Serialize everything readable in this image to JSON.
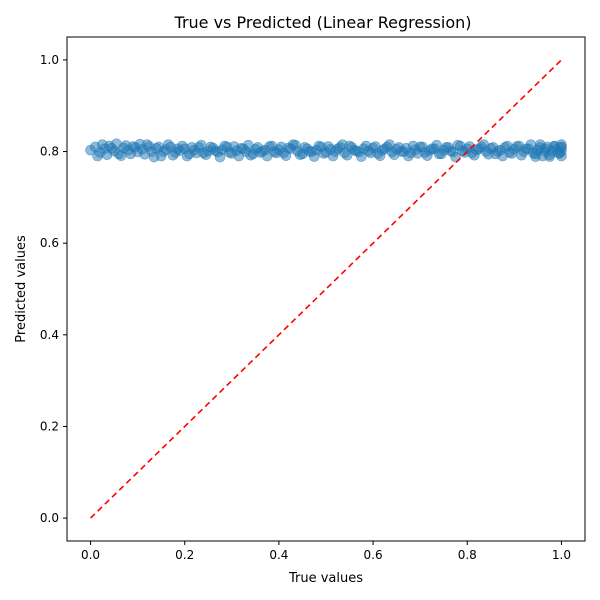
{
  "chart_data": {
    "type": "scatter",
    "title": "True vs Predicted (Linear Regression)",
    "xlabel": "True values",
    "ylabel": "Predicted values",
    "xlim": [
      -0.05,
      1.05
    ],
    "ylim": [
      -0.05,
      1.05
    ],
    "xticks": [
      "0.0",
      "0.2",
      "0.4",
      "0.6",
      "0.8",
      "1.0"
    ],
    "yticks": [
      "0.0",
      "0.2",
      "0.4",
      "0.6",
      "0.8",
      "1.0"
    ],
    "grid": false,
    "legend": "none",
    "series": [
      {
        "kind": "scatter",
        "color": "#1f77b4",
        "alpha": 0.5,
        "points": [
          [
            0.0,
            0.803
          ],
          [
            0.01,
            0.81
          ],
          [
            0.02,
            0.798
          ],
          [
            0.03,
            0.806
          ],
          [
            0.04,
            0.812
          ],
          [
            0.05,
            0.801
          ],
          [
            0.06,
            0.795
          ],
          [
            0.07,
            0.808
          ],
          [
            0.08,
            0.803
          ],
          [
            0.09,
            0.811
          ],
          [
            0.1,
            0.799
          ],
          [
            0.11,
            0.805
          ],
          [
            0.12,
            0.815
          ],
          [
            0.13,
            0.8
          ],
          [
            0.14,
            0.807
          ],
          [
            0.15,
            0.79
          ],
          [
            0.16,
            0.804
          ],
          [
            0.17,
            0.81
          ],
          [
            0.18,
            0.798
          ],
          [
            0.19,
            0.802
          ],
          [
            0.2,
            0.806
          ],
          [
            0.21,
            0.795
          ],
          [
            0.22,
            0.803
          ],
          [
            0.23,
            0.809
          ],
          [
            0.24,
            0.797
          ],
          [
            0.25,
            0.801
          ],
          [
            0.26,
            0.808
          ],
          [
            0.27,
            0.799
          ],
          [
            0.28,
            0.804
          ],
          [
            0.29,
            0.81
          ],
          [
            0.3,
            0.796
          ],
          [
            0.31,
            0.802
          ],
          [
            0.32,
            0.807
          ],
          [
            0.33,
            0.8
          ],
          [
            0.34,
            0.792
          ],
          [
            0.35,
            0.805
          ],
          [
            0.36,
            0.798
          ],
          [
            0.37,
            0.803
          ],
          [
            0.38,
            0.811
          ],
          [
            0.39,
            0.799
          ],
          [
            0.4,
            0.804
          ],
          [
            0.41,
            0.797
          ],
          [
            0.42,
            0.808
          ],
          [
            0.43,
            0.815
          ],
          [
            0.44,
            0.801
          ],
          [
            0.45,
            0.795
          ],
          [
            0.46,
            0.806
          ],
          [
            0.47,
            0.8
          ],
          [
            0.48,
            0.803
          ],
          [
            0.49,
            0.81
          ],
          [
            0.5,
            0.798
          ],
          [
            0.51,
            0.805
          ],
          [
            0.52,
            0.8
          ],
          [
            0.53,
            0.809
          ],
          [
            0.54,
            0.797
          ],
          [
            0.55,
            0.812
          ],
          [
            0.56,
            0.803
          ],
          [
            0.57,
            0.799
          ],
          [
            0.58,
            0.806
          ],
          [
            0.59,
            0.801
          ],
          [
            0.6,
            0.808
          ],
          [
            0.61,
            0.796
          ],
          [
            0.62,
            0.803
          ],
          [
            0.63,
            0.81
          ],
          [
            0.64,
            0.799
          ],
          [
            0.65,
            0.805
          ],
          [
            0.66,
            0.8
          ],
          [
            0.67,
            0.807
          ],
          [
            0.68,
            0.797
          ],
          [
            0.69,
            0.804
          ],
          [
            0.7,
            0.81
          ],
          [
            0.71,
            0.798
          ],
          [
            0.72,
            0.802
          ],
          [
            0.73,
            0.806
          ],
          [
            0.74,
            0.795
          ],
          [
            0.75,
            0.803
          ],
          [
            0.76,
            0.809
          ],
          [
            0.77,
            0.799
          ],
          [
            0.78,
            0.814
          ],
          [
            0.79,
            0.801
          ],
          [
            0.8,
            0.806
          ],
          [
            0.81,
            0.797
          ],
          [
            0.82,
            0.803
          ],
          [
            0.83,
            0.81
          ],
          [
            0.84,
            0.8
          ],
          [
            0.85,
            0.807
          ],
          [
            0.86,
            0.795
          ],
          [
            0.87,
            0.803
          ],
          [
            0.88,
            0.809
          ],
          [
            0.89,
            0.798
          ],
          [
            0.9,
            0.805
          ],
          [
            0.91,
            0.812
          ],
          [
            0.92,
            0.8
          ],
          [
            0.93,
            0.806
          ],
          [
            0.94,
            0.797
          ],
          [
            0.95,
            0.803
          ],
          [
            0.96,
            0.79
          ],
          [
            0.97,
            0.81
          ],
          [
            0.98,
            0.801
          ],
          [
            0.99,
            0.805
          ],
          [
            1.0,
            0.815
          ],
          [
            1.0,
            0.79
          ],
          [
            1.0,
            0.8
          ],
          [
            1.0,
            0.808
          ],
          [
            0.995,
            0.796
          ],
          [
            0.985,
            0.811
          ],
          [
            0.975,
            0.793
          ],
          [
            0.965,
            0.806
          ],
          [
            0.955,
            0.815
          ],
          [
            0.945,
            0.789
          ],
          [
            0.015,
            0.79
          ],
          [
            0.025,
            0.815
          ],
          [
            0.035,
            0.793
          ],
          [
            0.045,
            0.807
          ],
          [
            0.055,
            0.817
          ],
          [
            0.065,
            0.791
          ],
          [
            0.075,
            0.813
          ],
          [
            0.085,
            0.795
          ],
          [
            0.095,
            0.809
          ],
          [
            0.105,
            0.816
          ],
          [
            0.115,
            0.794
          ],
          [
            0.125,
            0.811
          ],
          [
            0.135,
            0.788
          ],
          [
            0.145,
            0.81
          ],
          [
            0.155,
            0.8
          ],
          [
            0.165,
            0.815
          ],
          [
            0.175,
            0.792
          ],
          [
            0.185,
            0.806
          ],
          [
            0.195,
            0.812
          ],
          [
            0.205,
            0.79
          ],
          [
            0.215,
            0.809
          ],
          [
            0.225,
            0.797
          ],
          [
            0.235,
            0.814
          ],
          [
            0.245,
            0.793
          ],
          [
            0.255,
            0.81
          ],
          [
            0.265,
            0.802
          ],
          [
            0.275,
            0.788
          ],
          [
            0.285,
            0.812
          ],
          [
            0.295,
            0.798
          ],
          [
            0.305,
            0.811
          ],
          [
            0.315,
            0.79
          ],
          [
            0.325,
            0.806
          ],
          [
            0.335,
            0.814
          ],
          [
            0.345,
            0.795
          ],
          [
            0.355,
            0.809
          ],
          [
            0.365,
            0.8
          ],
          [
            0.375,
            0.79
          ],
          [
            0.385,
            0.812
          ],
          [
            0.395,
            0.797
          ],
          [
            0.405,
            0.81
          ],
          [
            0.415,
            0.791
          ],
          [
            0.425,
            0.806
          ],
          [
            0.435,
            0.814
          ],
          [
            0.445,
            0.793
          ],
          [
            0.455,
            0.809
          ],
          [
            0.465,
            0.8
          ],
          [
            0.475,
            0.789
          ],
          [
            0.485,
            0.812
          ],
          [
            0.495,
            0.796
          ],
          [
            0.505,
            0.811
          ],
          [
            0.515,
            0.79
          ],
          [
            0.525,
            0.806
          ],
          [
            0.535,
            0.815
          ],
          [
            0.545,
            0.792
          ],
          [
            0.555,
            0.809
          ],
          [
            0.565,
            0.801
          ],
          [
            0.575,
            0.789
          ],
          [
            0.585,
            0.812
          ],
          [
            0.595,
            0.797
          ],
          [
            0.605,
            0.811
          ],
          [
            0.615,
            0.791
          ],
          [
            0.625,
            0.806
          ],
          [
            0.635,
            0.815
          ],
          [
            0.645,
            0.793
          ],
          [
            0.655,
            0.809
          ],
          [
            0.665,
            0.8
          ],
          [
            0.675,
            0.79
          ],
          [
            0.685,
            0.812
          ],
          [
            0.695,
            0.796
          ],
          [
            0.705,
            0.81
          ],
          [
            0.715,
            0.791
          ],
          [
            0.725,
            0.806
          ],
          [
            0.735,
            0.814
          ],
          [
            0.745,
            0.795
          ],
          [
            0.755,
            0.809
          ],
          [
            0.765,
            0.801
          ],
          [
            0.775,
            0.788
          ],
          [
            0.785,
            0.812
          ],
          [
            0.795,
            0.798
          ],
          [
            0.805,
            0.811
          ],
          [
            0.815,
            0.792
          ],
          [
            0.825,
            0.806
          ],
          [
            0.835,
            0.815
          ],
          [
            0.845,
            0.794
          ],
          [
            0.855,
            0.809
          ],
          [
            0.865,
            0.8
          ],
          [
            0.875,
            0.79
          ],
          [
            0.885,
            0.812
          ],
          [
            0.895,
            0.796
          ],
          [
            0.905,
            0.811
          ],
          [
            0.915,
            0.792
          ],
          [
            0.925,
            0.806
          ],
          [
            0.935,
            0.815
          ],
          [
            0.945,
            0.795
          ],
          [
            0.955,
            0.809
          ],
          [
            0.965,
            0.8
          ],
          [
            0.975,
            0.789
          ],
          [
            0.985,
            0.812
          ],
          [
            0.995,
            0.797
          ],
          [
            1.0,
            0.81
          ]
        ]
      },
      {
        "kind": "line",
        "name": "",
        "style": "dashed",
        "color": "#ff0000",
        "points": [
          [
            0,
            0
          ],
          [
            1,
            1
          ]
        ]
      }
    ]
  }
}
